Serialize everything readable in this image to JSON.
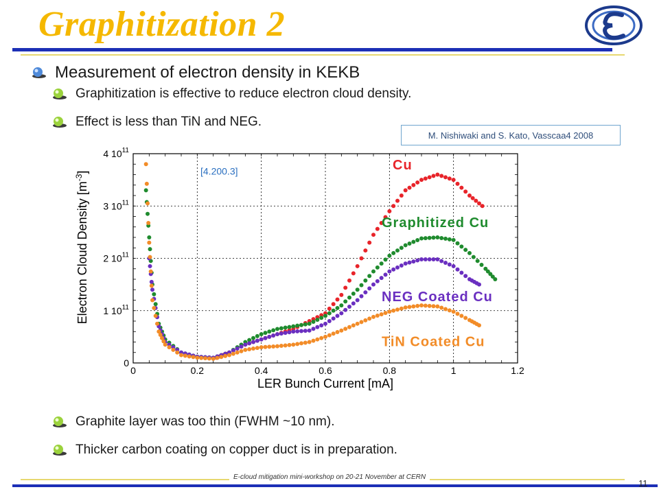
{
  "slide": {
    "title": "Graphitization 2",
    "bullets": {
      "main": "Measurement of electron density in KEKB",
      "sub1": "Graphitization is effective to reduce electron cloud density.",
      "sub2": "Effect is less than TiN and NEG.",
      "sub3": "Graphite layer was too thin (FWHM ~10 nm).",
      "sub4": "Thicker carbon coating on copper duct is in preparation."
    },
    "citation": "M. Nishiwaki and S. Kato, Vasscaa4 2008",
    "footer": "E-cloud mitigation mini-workshop on 20-21 November at CERN",
    "page_number": "11",
    "colors": {
      "title": "#F5B800",
      "rule": "#1C2FB6",
      "accent_rule": "#E7D870"
    }
  },
  "chart_data": {
    "type": "scatter",
    "xlabel": "LER Bunch Current [mA]",
    "ylabel": "Electron Cloud Density [m",
    "ylabel_exp": "-3",
    "ylabel_close": "]",
    "annotation": "[4.200.3]",
    "xlim": [
      0,
      1.2
    ],
    "ylim": [
      0,
      400000000000.0
    ],
    "x_ticks": [
      "0",
      "0.2",
      "0.4",
      "0.6",
      "0.8",
      "1",
      "1.2"
    ],
    "y_ticks": [
      {
        "mant": "0",
        "exp": ""
      },
      {
        "mant": "1 10",
        "exp": "11"
      },
      {
        "mant": "2 10",
        "exp": "11"
      },
      {
        "mant": "3 10",
        "exp": "11"
      },
      {
        "mant": "4 10",
        "exp": "11"
      }
    ],
    "grid": true,
    "series": [
      {
        "name": "Cu",
        "color": "#E8242A",
        "x": [
          0.26,
          0.3,
          0.35,
          0.4,
          0.45,
          0.5,
          0.55,
          0.6,
          0.65,
          0.7,
          0.75,
          0.8,
          0.85,
          0.9,
          0.95,
          1.0,
          1.05,
          1.09
        ],
        "y": [
          10000000000.0,
          20000000000.0,
          35000000000.0,
          45000000000.0,
          55000000000.0,
          65000000000.0,
          80000000000.0,
          95000000000.0,
          130000000000.0,
          185000000000.0,
          245000000000.0,
          290000000000.0,
          330000000000.0,
          350000000000.0,
          360000000000.0,
          350000000000.0,
          320000000000.0,
          300000000000.0
        ]
      },
      {
        "name": "Graphitized Cu",
        "color": "#1F8B2E",
        "x": [
          0.04,
          0.05,
          0.06,
          0.08,
          0.1,
          0.15,
          0.2,
          0.25,
          0.3,
          0.35,
          0.4,
          0.45,
          0.5,
          0.55,
          0.6,
          0.65,
          0.7,
          0.75,
          0.8,
          0.85,
          0.9,
          0.95,
          1.0,
          1.05,
          1.1,
          1.13
        ],
        "y": [
          330000000000.0,
          240000000000.0,
          150000000000.0,
          75000000000.0,
          45000000000.0,
          20000000000.0,
          12000000000.0,
          10000000000.0,
          20000000000.0,
          40000000000.0,
          55000000000.0,
          65000000000.0,
          70000000000.0,
          75000000000.0,
          90000000000.0,
          110000000000.0,
          140000000000.0,
          175000000000.0,
          205000000000.0,
          225000000000.0,
          238000000000.0,
          240000000000.0,
          235000000000.0,
          210000000000.0,
          180000000000.0,
          160000000000.0
        ]
      },
      {
        "name": "NEG Coated Cu",
        "color": "#6A2FC0",
        "x": [
          0.05,
          0.06,
          0.08,
          0.1,
          0.15,
          0.2,
          0.25,
          0.3,
          0.35,
          0.4,
          0.45,
          0.5,
          0.55,
          0.6,
          0.65,
          0.7,
          0.75,
          0.8,
          0.85,
          0.9,
          0.95,
          1.0,
          1.05,
          1.08
        ],
        "y": [
          200000000000.0,
          140000000000.0,
          70000000000.0,
          40000000000.0,
          20000000000.0,
          12000000000.0,
          10000000000.0,
          20000000000.0,
          35000000000.0,
          45000000000.0,
          55000000000.0,
          60000000000.0,
          62000000000.0,
          75000000000.0,
          95000000000.0,
          120000000000.0,
          150000000000.0,
          175000000000.0,
          190000000000.0,
          198000000000.0,
          198000000000.0,
          185000000000.0,
          160000000000.0,
          150000000000.0
        ]
      },
      {
        "name": "TiN Coated Cu",
        "color": "#F28C28",
        "x": [
          0.04,
          0.05,
          0.06,
          0.08,
          0.1,
          0.15,
          0.2,
          0.25,
          0.3,
          0.35,
          0.4,
          0.45,
          0.5,
          0.55,
          0.6,
          0.65,
          0.7,
          0.75,
          0.8,
          0.85,
          0.9,
          0.95,
          1.0,
          1.05,
          1.08
        ],
        "y": [
          380000000000.0,
          230000000000.0,
          120000000000.0,
          60000000000.0,
          35000000000.0,
          15000000000.0,
          10000000000.0,
          8000000000.0,
          15000000000.0,
          25000000000.0,
          30000000000.0,
          32000000000.0,
          35000000000.0,
          40000000000.0,
          50000000000.0,
          62000000000.0,
          75000000000.0,
          88000000000.0,
          98000000000.0,
          106000000000.0,
          110000000000.0,
          108000000000.0,
          98000000000.0,
          82000000000.0,
          72000000000.0
        ]
      }
    ],
    "legend": [
      {
        "label": "Cu",
        "color": "#E8242A"
      },
      {
        "label": "Graphitized Cu",
        "color": "#1F8B2E"
      },
      {
        "label": "NEG Coated Cu",
        "color": "#6A2FC0"
      },
      {
        "label": "TiN Coated Cu",
        "color": "#F28C28"
      }
    ]
  }
}
